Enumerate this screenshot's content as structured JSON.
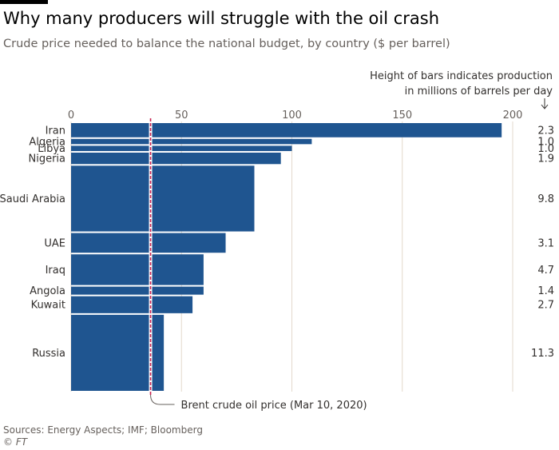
{
  "title": "Why many producers will struggle with the oil crash",
  "subtitle": "Crude price needed to balance the national budget, by country ($ per barrel)",
  "source": "Sources: Energy Aspects; IMF; Bloomberg",
  "copyright": "© FT",
  "colors": {
    "bar": "#1f5590",
    "brent_line": "#c8204f",
    "grid": "#e3d9cc",
    "text": "#33302e"
  },
  "chart_data": {
    "type": "bar",
    "orientation": "horizontal",
    "title": "Why many producers will struggle with the oil crash",
    "subtitle": "Crude price needed to balance the national budget, by country ($ per barrel)",
    "xlim": [
      0,
      200
    ],
    "xticks": [
      0,
      50,
      100,
      150,
      200
    ],
    "tick_labels": [
      "0",
      "50",
      "100",
      "150",
      "200"
    ],
    "categories": [
      "Iran",
      "Algeria",
      "Libya",
      "Nigeria",
      "Saudi Arabia",
      "UAE",
      "Iraq",
      "Angola",
      "Kuwait",
      "Russia"
    ],
    "values": [
      195,
      109,
      100,
      95,
      83,
      70,
      60,
      60,
      55,
      42
    ],
    "production": [
      "2.3",
      "1.0",
      "1.0",
      "1.9",
      "9.8",
      "3.1",
      "4.7",
      "1.4",
      "2.7",
      "11.3"
    ],
    "production_values": [
      2.3,
      1.0,
      1.0,
      1.9,
      9.8,
      3.1,
      4.7,
      1.4,
      2.7,
      11.3
    ],
    "production_note_line1": "Height of bars indicates production",
    "production_note_line2": "in millions of barrels per day",
    "reference_line": {
      "value": 36,
      "label": "Brent crude oil price (Mar 10, 2020)"
    }
  }
}
